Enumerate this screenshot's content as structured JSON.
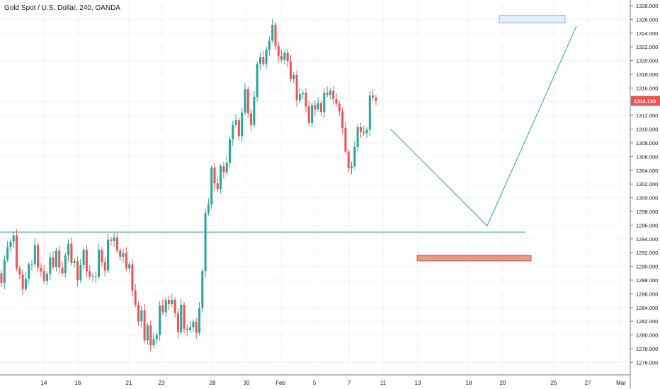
{
  "header": {
    "title": "Gold Spot / U.S. Dollar, 240, OANDA"
  },
  "price_label": {
    "value": "1314.120",
    "color": "#ef5350"
  },
  "colors": {
    "up": "#26a69a",
    "down": "#ef5350",
    "grid": "#f0f3fa",
    "projection": "#26a69a",
    "target_box_fill": "#e3eefc",
    "target_box_stroke": "#90b4e8",
    "zone_fill": "#e8988a",
    "zone_stroke": "#d0553a"
  },
  "chart_data": {
    "type": "candlestick",
    "title": "Gold Spot / U.S. Dollar, 240, OANDA",
    "ylim": [
      1275,
      1328
    ],
    "y_ticks": [
      "1328.000",
      "1326.000",
      "1324.000",
      "1322.000",
      "1320.000",
      "1318.000",
      "1316.000",
      "1314.000",
      "1312.000",
      "1310.000",
      "1308.000",
      "1306.000",
      "1304.000",
      "1302.000",
      "1300.000",
      "1298.000",
      "1296.000",
      "1294.000",
      "1292.000",
      "1290.000",
      "1288.000",
      "1286.000",
      "1284.000",
      "1282.000",
      "1280.000",
      "1278.000",
      "1276.000"
    ],
    "x_ticks": [
      "14",
      "16",
      "21",
      "23",
      "28",
      "30",
      "Feb",
      "5",
      "7",
      "11",
      "13",
      "18",
      "20",
      "25",
      "27",
      "Mar"
    ],
    "grid": true,
    "closes": [
      1287.6,
      1291,
      1292.8,
      1293.6,
      1294.5,
      1289.7,
      1288.8,
      1286.7,
      1288.2,
      1290.3,
      1290.3,
      1293.1,
      1289.8,
      1289.3,
      1287.9,
      1288.9,
      1291.3,
      1289.9,
      1292.3,
      1289.8,
      1289,
      1291.6,
      1293.3,
      1290.5,
      1290.8,
      1288,
      1290.2,
      1292.4,
      1289.3,
      1288.5,
      1288.6,
      1288.5,
      1292.4,
      1290.6,
      1289.4,
      1293.9,
      1293.7,
      1294.2,
      1292.3,
      1291.4,
      1291.9,
      1289.7,
      1290.3,
      1286.5,
      1284.4,
      1282,
      1283.6,
      1279.2,
      1281.4,
      1278.5,
      1279.4,
      1280,
      1284.3,
      1283.3,
      1285.1,
      1284.5,
      1285.1,
      1283.2,
      1280.4,
      1284.4,
      1280.9,
      1280.7,
      1281.1,
      1281.9,
      1280.3,
      1283.9,
      1289.3,
      1297.8,
      1299,
      1304.4,
      1302.1,
      1301.3,
      1304.6,
      1303.7,
      1305.1,
      1308.5,
      1310.6,
      1311.3,
      1309,
      1312.4,
      1315.8,
      1312.3,
      1310.6,
      1314.7,
      1319.5,
      1320.5,
      1319.5,
      1321.6,
      1322.9,
      1325.2,
      1322.1,
      1320.7,
      1320.1,
      1321.1,
      1319.9,
      1317.3,
      1317.9,
      1314.2,
      1315.1,
      1315.3,
      1313.3,
      1310.9,
      1313.5,
      1312.9,
      1313.8,
      1312.5,
      1315.3,
      1315,
      1315.6,
      1314.4,
      1313.7,
      1312.6,
      1310.2,
      1306.7,
      1304.3,
      1304.6,
      1307.4,
      1310.3,
      1309.6,
      1309.4,
      1309.9,
      1314.9,
      1314.6,
      1314.1
    ]
  },
  "projection": {
    "path": [
      [
        1,
        1310
      ],
      [
        14,
        1295.9
      ],
      [
        26,
        1325
      ]
    ],
    "horizontal_level": 1295,
    "target_box": [
      1325.5,
      1326.6
    ],
    "zone": [
      1290.8,
      1291.6
    ]
  }
}
